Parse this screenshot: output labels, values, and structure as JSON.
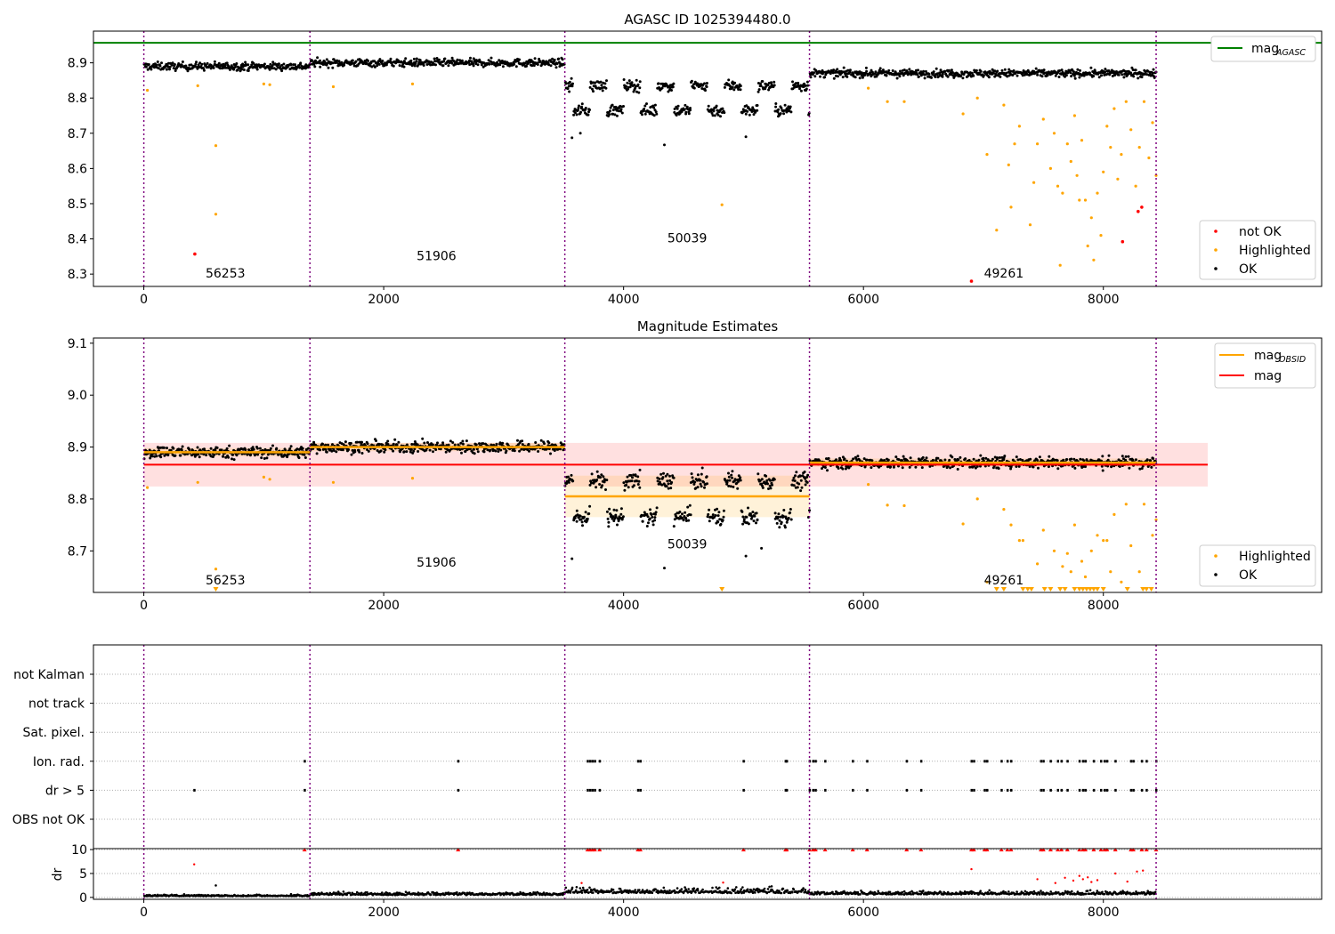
{
  "figure": {
    "background": "#ffffff"
  },
  "chart_data": [
    {
      "type": "scatter",
      "title": "AGASC ID 1025394480.0",
      "xlabel": "",
      "ylabel": "",
      "xlim": [
        -420,
        9820
      ],
      "ylim": [
        8.265,
        8.99
      ],
      "xticks": [
        0,
        2000,
        4000,
        6000,
        8000
      ],
      "yticks": [
        8.3,
        8.4,
        8.5,
        8.6,
        8.7,
        8.8,
        8.9
      ],
      "ytick_labels": [
        "8.3",
        "8.4",
        "8.5",
        "8.6",
        "8.7",
        "8.8",
        "8.9"
      ],
      "obs_boundaries": [
        0,
        1385,
        3510,
        5550,
        8440
      ],
      "obs_labels": [
        {
          "x": 680,
          "y": 8.29,
          "text": "56253"
        },
        {
          "x": 2440,
          "y": 8.34,
          "text": "51906"
        },
        {
          "x": 4530,
          "y": 8.39,
          "text": "50039"
        },
        {
          "x": 7170,
          "y": 8.29,
          "text": "49261"
        }
      ],
      "obs_levels": [
        {
          "x0": 0,
          "x1": 1385,
          "mean": 8.89,
          "spread": 0.008
        },
        {
          "x0": 1385,
          "x1": 3510,
          "mean": 8.9,
          "spread": 0.008
        },
        {
          "x0": 3510,
          "x1": 5550,
          "mean": 8.805,
          "spread": 0.04,
          "bimodal": [
            8.835,
            8.765
          ]
        },
        {
          "x0": 5550,
          "x1": 8440,
          "mean": 8.87,
          "spread": 0.008
        }
      ],
      "mag_agasc": 8.957,
      "highlighted_points": [
        [
          30,
          8.822
        ],
        [
          450,
          8.835
        ],
        [
          600,
          8.665
        ],
        [
          600,
          8.47
        ],
        [
          1000,
          8.84
        ],
        [
          1050,
          8.838
        ],
        [
          1580,
          8.832
        ],
        [
          2240,
          8.84
        ],
        [
          6040,
          8.828
        ],
        [
          6200,
          8.79
        ],
        [
          6340,
          8.79
        ],
        [
          6830,
          8.755
        ],
        [
          6950,
          8.8
        ],
        [
          7030,
          8.64
        ],
        [
          7110,
          8.425
        ],
        [
          7170,
          8.78
        ],
        [
          7210,
          8.61
        ],
        [
          7230,
          8.49
        ],
        [
          7260,
          8.67
        ],
        [
          7300,
          8.72
        ],
        [
          7390,
          8.44
        ],
        [
          7420,
          8.56
        ],
        [
          7450,
          8.67
        ],
        [
          7500,
          8.74
        ],
        [
          7560,
          8.6
        ],
        [
          7590,
          8.7
        ],
        [
          7620,
          8.55
        ],
        [
          7640,
          8.325
        ],
        [
          7660,
          8.53
        ],
        [
          7700,
          8.67
        ],
        [
          7730,
          8.62
        ],
        [
          7760,
          8.75
        ],
        [
          7780,
          8.58
        ],
        [
          7800,
          8.51
        ],
        [
          7820,
          8.68
        ],
        [
          7850,
          8.51
        ],
        [
          7870,
          8.38
        ],
        [
          7900,
          8.46
        ],
        [
          7920,
          8.34
        ],
        [
          7950,
          8.53
        ],
        [
          7980,
          8.41
        ],
        [
          8000,
          8.59
        ],
        [
          8030,
          8.72
        ],
        [
          8060,
          8.66
        ],
        [
          8090,
          8.77
        ],
        [
          8120,
          8.57
        ],
        [
          8150,
          8.64
        ],
        [
          8190,
          8.79
        ],
        [
          8230,
          8.71
        ],
        [
          8270,
          8.55
        ],
        [
          8300,
          8.66
        ],
        [
          8340,
          8.79
        ],
        [
          8380,
          8.63
        ],
        [
          8410,
          8.73
        ],
        [
          8440,
          8.58
        ],
        [
          4820,
          8.497
        ]
      ],
      "not_ok_points": [
        [
          425,
          8.357
        ],
        [
          6900,
          8.28
        ],
        [
          8160,
          8.392
        ],
        [
          8290,
          8.478
        ],
        [
          8320,
          8.49
        ]
      ],
      "ok_outliers": [
        [
          3570,
          8.687
        ],
        [
          3640,
          8.7
        ],
        [
          4340,
          8.667
        ],
        [
          5020,
          8.69
        ]
      ],
      "legend_top": [
        {
          "label": "mag",
          "sub": "AGASC",
          "color": "#008000",
          "style": "line"
        }
      ],
      "legend_bottom": [
        {
          "label": "not OK",
          "color": "#ff0000",
          "style": "dot"
        },
        {
          "label": "Highlighted",
          "color": "#ffa500",
          "style": "dot"
        },
        {
          "label": "OK",
          "color": "#000000",
          "style": "dot"
        }
      ]
    },
    {
      "type": "scatter",
      "title": "Magnitude Estimates",
      "xlabel": "",
      "ylabel": "",
      "xlim": [
        -420,
        9820
      ],
      "ylim": [
        8.62,
        9.11
      ],
      "xticks": [
        0,
        2000,
        4000,
        6000,
        8000
      ],
      "yticks": [
        8.7,
        8.8,
        8.9,
        9.0,
        9.1
      ],
      "ytick_labels": [
        "8.7",
        "8.8",
        "8.9",
        "9.0",
        "9.1"
      ],
      "obs_boundaries": [
        0,
        1385,
        3510,
        5550,
        8440
      ],
      "obs_labels": [
        {
          "x": 680,
          "y": 8.635,
          "text": "56253"
        },
        {
          "x": 2440,
          "y": 8.67,
          "text": "51906"
        },
        {
          "x": 4530,
          "y": 8.705,
          "text": "50039"
        },
        {
          "x": 7170,
          "y": 8.635,
          "text": "49261"
        }
      ],
      "mag": 8.866,
      "mag_band": [
        8.824,
        8.908
      ],
      "mag_band_xrange": [
        0,
        8870
      ],
      "obsid_mags": [
        {
          "x0": 0,
          "x1": 1385,
          "mag": 8.89,
          "err": 0.008
        },
        {
          "x0": 1385,
          "x1": 3510,
          "mag": 8.9,
          "err": 0.008
        },
        {
          "x0": 3510,
          "x1": 5550,
          "mag": 8.805,
          "err": 0.04
        },
        {
          "x0": 5550,
          "x1": 8440,
          "mag": 8.87,
          "err": 0.008
        }
      ],
      "highlighted_points": [
        [
          30,
          8.822
        ],
        [
          450,
          8.832
        ],
        [
          600,
          8.665
        ],
        [
          1000,
          8.842
        ],
        [
          1050,
          8.838
        ],
        [
          1580,
          8.832
        ],
        [
          2240,
          8.84
        ],
        [
          6040,
          8.828
        ],
        [
          6200,
          8.788
        ],
        [
          6340,
          8.787
        ],
        [
          6830,
          8.752
        ],
        [
          6950,
          8.8
        ],
        [
          7030,
          8.64
        ],
        [
          7170,
          8.78
        ],
        [
          7230,
          8.75
        ],
        [
          7300,
          8.72
        ],
        [
          7330,
          8.72
        ],
        [
          7450,
          8.675
        ],
        [
          7500,
          8.74
        ],
        [
          7590,
          8.7
        ],
        [
          7660,
          8.67
        ],
        [
          7700,
          8.695
        ],
        [
          7730,
          8.66
        ],
        [
          7760,
          8.75
        ],
        [
          7820,
          8.68
        ],
        [
          7850,
          8.65
        ],
        [
          7900,
          8.7
        ],
        [
          7950,
          8.73
        ],
        [
          8000,
          8.72
        ],
        [
          8030,
          8.72
        ],
        [
          8060,
          8.66
        ],
        [
          8090,
          8.77
        ],
        [
          8150,
          8.64
        ],
        [
          8190,
          8.79
        ],
        [
          8230,
          8.71
        ],
        [
          8300,
          8.66
        ],
        [
          8340,
          8.79
        ],
        [
          8410,
          8.73
        ],
        [
          8440,
          8.76
        ]
      ],
      "off_scale_markers": [
        600,
        4820,
        7110,
        7170,
        7330,
        7370,
        7400,
        7510,
        7560,
        7640,
        7680,
        7760,
        7800,
        7830,
        7860,
        7890,
        7920,
        7950,
        8000,
        8200,
        8330,
        8360,
        8400
      ],
      "ok_outliers": [
        [
          3570,
          8.685
        ],
        [
          4340,
          8.667
        ],
        [
          5020,
          8.69
        ],
        [
          5150,
          8.705
        ]
      ],
      "legend_top": [
        {
          "label": "mag",
          "sub": "OBSID",
          "color": "#ffa500",
          "style": "line"
        },
        {
          "label": "mag",
          "sub": "",
          "color": "#ff0000",
          "style": "line"
        }
      ],
      "legend_bottom": [
        {
          "label": "Highlighted",
          "color": "#ffa500",
          "style": "dot"
        },
        {
          "label": "OK",
          "color": "#000000",
          "style": "dot"
        }
      ]
    },
    {
      "type": "scatter",
      "title": "",
      "xlabel": "",
      "ylabel": "",
      "xlim": [
        -420,
        9820
      ],
      "categories": [
        "not Kalman",
        "not track",
        "Sat. pixel.",
        "Ion. rad.",
        "dr > 5",
        "OBS not OK"
      ],
      "obs_boundaries": [
        0,
        1385,
        3510,
        5550,
        8440
      ],
      "flag_points": {
        "Ion. rad.": [
          1340,
          2620,
          3700,
          3720,
          3740,
          3760,
          3800,
          4120,
          4140,
          5000,
          5350,
          5360,
          5550,
          5580,
          5600,
          5680,
          5910,
          6030,
          6360,
          6480,
          6900,
          6920,
          7010,
          7030,
          7150,
          7200,
          7230,
          7480,
          7500,
          7560,
          7620,
          7650,
          7700,
          7800,
          7830,
          7850,
          7920,
          7980,
          8010,
          8030,
          8100,
          8230,
          8250,
          8320,
          8360,
          8440
        ],
        "dr > 5": [
          420,
          1340,
          2620,
          3700,
          3720,
          3740,
          3760,
          3800,
          4120,
          4140,
          5000,
          5350,
          5360,
          5550,
          5580,
          5600,
          5680,
          5910,
          6030,
          6360,
          6480,
          6900,
          6920,
          7010,
          7030,
          7150,
          7200,
          7230,
          7480,
          7500,
          7560,
          7620,
          7650,
          7700,
          7800,
          7830,
          7850,
          7920,
          7980,
          8010,
          8030,
          8100,
          8230,
          8250,
          8320,
          8360,
          8440
        ]
      }
    },
    {
      "type": "scatter",
      "title": "",
      "xlabel": "",
      "ylabel": "dr",
      "xlim": [
        -420,
        9820
      ],
      "ylim": [
        -0.4,
        10.2
      ],
      "yticks": [
        0,
        5,
        10
      ],
      "ytick_labels": [
        "0",
        "5",
        "10"
      ],
      "xticks": [
        0,
        2000,
        4000,
        6000,
        8000
      ],
      "obs_boundaries": [
        0,
        1385,
        3510,
        5550,
        8440
      ],
      "dr_levels": [
        {
          "x0": 0,
          "x1": 1385,
          "level": 0.25
        },
        {
          "x0": 1385,
          "x1": 3510,
          "level": 0.5
        },
        {
          "x0": 3510,
          "x1": 5550,
          "level": 0.9
        },
        {
          "x0": 5550,
          "x1": 8440,
          "level": 0.6
        }
      ],
      "clipped_markers": [
        1340,
        2620,
        3700,
        3720,
        3740,
        3760,
        3800,
        4120,
        4140,
        5000,
        5350,
        5360,
        5550,
        5580,
        5600,
        5680,
        5910,
        6030,
        6360,
        6480,
        6900,
        6920,
        7010,
        7030,
        7150,
        7200,
        7230,
        7480,
        7500,
        7560,
        7620,
        7650,
        7700,
        7800,
        7830,
        7850,
        7920,
        7980,
        8010,
        8030,
        8100,
        8230,
        8250,
        8320,
        8360,
        8440
      ],
      "red_points": [
        [
          420,
          6.9
        ],
        [
          6900,
          5.9
        ],
        [
          3650,
          3.0
        ],
        [
          4830,
          3.1
        ],
        [
          7450,
          3.8
        ],
        [
          7600,
          3.0
        ],
        [
          7680,
          4.1
        ],
        [
          7750,
          3.5
        ],
        [
          7800,
          4.5
        ],
        [
          7830,
          3.8
        ],
        [
          7870,
          4.2
        ],
        [
          7900,
          3.2
        ],
        [
          7950,
          3.6
        ],
        [
          8100,
          5.0
        ],
        [
          8200,
          3.3
        ],
        [
          8280,
          5.4
        ],
        [
          8330,
          5.6
        ]
      ],
      "black_outliers": [
        [
          600,
          2.5
        ]
      ]
    }
  ]
}
